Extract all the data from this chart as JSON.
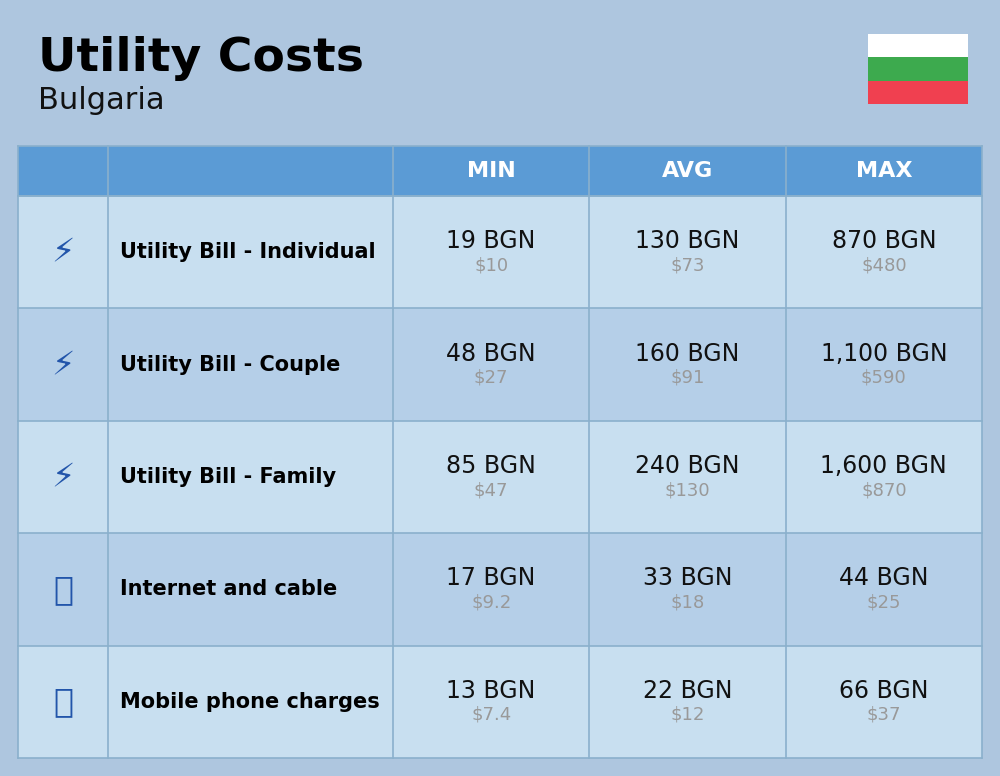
{
  "title": "Utility Costs",
  "subtitle": "Bulgaria",
  "background_color": "#aec6df",
  "header_bg_color": "#5b9bd5",
  "header_text_color": "#ffffff",
  "row_bg_light": "#c8dff0",
  "row_bg_dark": "#b5cfe8",
  "grid_line_color": "#8ab0cc",
  "col_headers": [
    "MIN",
    "AVG",
    "MAX"
  ],
  "rows": [
    {
      "label": "Utility Bill - Individual",
      "min_bgn": "19 BGN",
      "min_usd": "$10",
      "avg_bgn": "130 BGN",
      "avg_usd": "$73",
      "max_bgn": "870 BGN",
      "max_usd": "$480"
    },
    {
      "label": "Utility Bill - Couple",
      "min_bgn": "48 BGN",
      "min_usd": "$27",
      "avg_bgn": "160 BGN",
      "avg_usd": "$91",
      "max_bgn": "1,100 BGN",
      "max_usd": "$590"
    },
    {
      "label": "Utility Bill - Family",
      "min_bgn": "85 BGN",
      "min_usd": "$47",
      "avg_bgn": "240 BGN",
      "avg_usd": "$130",
      "max_bgn": "1,600 BGN",
      "max_usd": "$870"
    },
    {
      "label": "Internet and cable",
      "min_bgn": "17 BGN",
      "min_usd": "$9.2",
      "avg_bgn": "33 BGN",
      "avg_usd": "$18",
      "max_bgn": "44 BGN",
      "max_usd": "$25"
    },
    {
      "label": "Mobile phone charges",
      "min_bgn": "13 BGN",
      "min_usd": "$7.4",
      "avg_bgn": "22 BGN",
      "avg_usd": "$12",
      "max_bgn": "66 BGN",
      "max_usd": "$37"
    }
  ],
  "flag_white": "#ffffff",
  "flag_green": "#3daa4e",
  "flag_red": "#f04050",
  "title_fontsize": 34,
  "subtitle_fontsize": 22,
  "header_fontsize": 16,
  "label_fontsize": 15,
  "value_fontsize": 17,
  "usd_fontsize": 13,
  "usd_color": "#999999",
  "label_color": "#000000",
  "value_color": "#111111"
}
